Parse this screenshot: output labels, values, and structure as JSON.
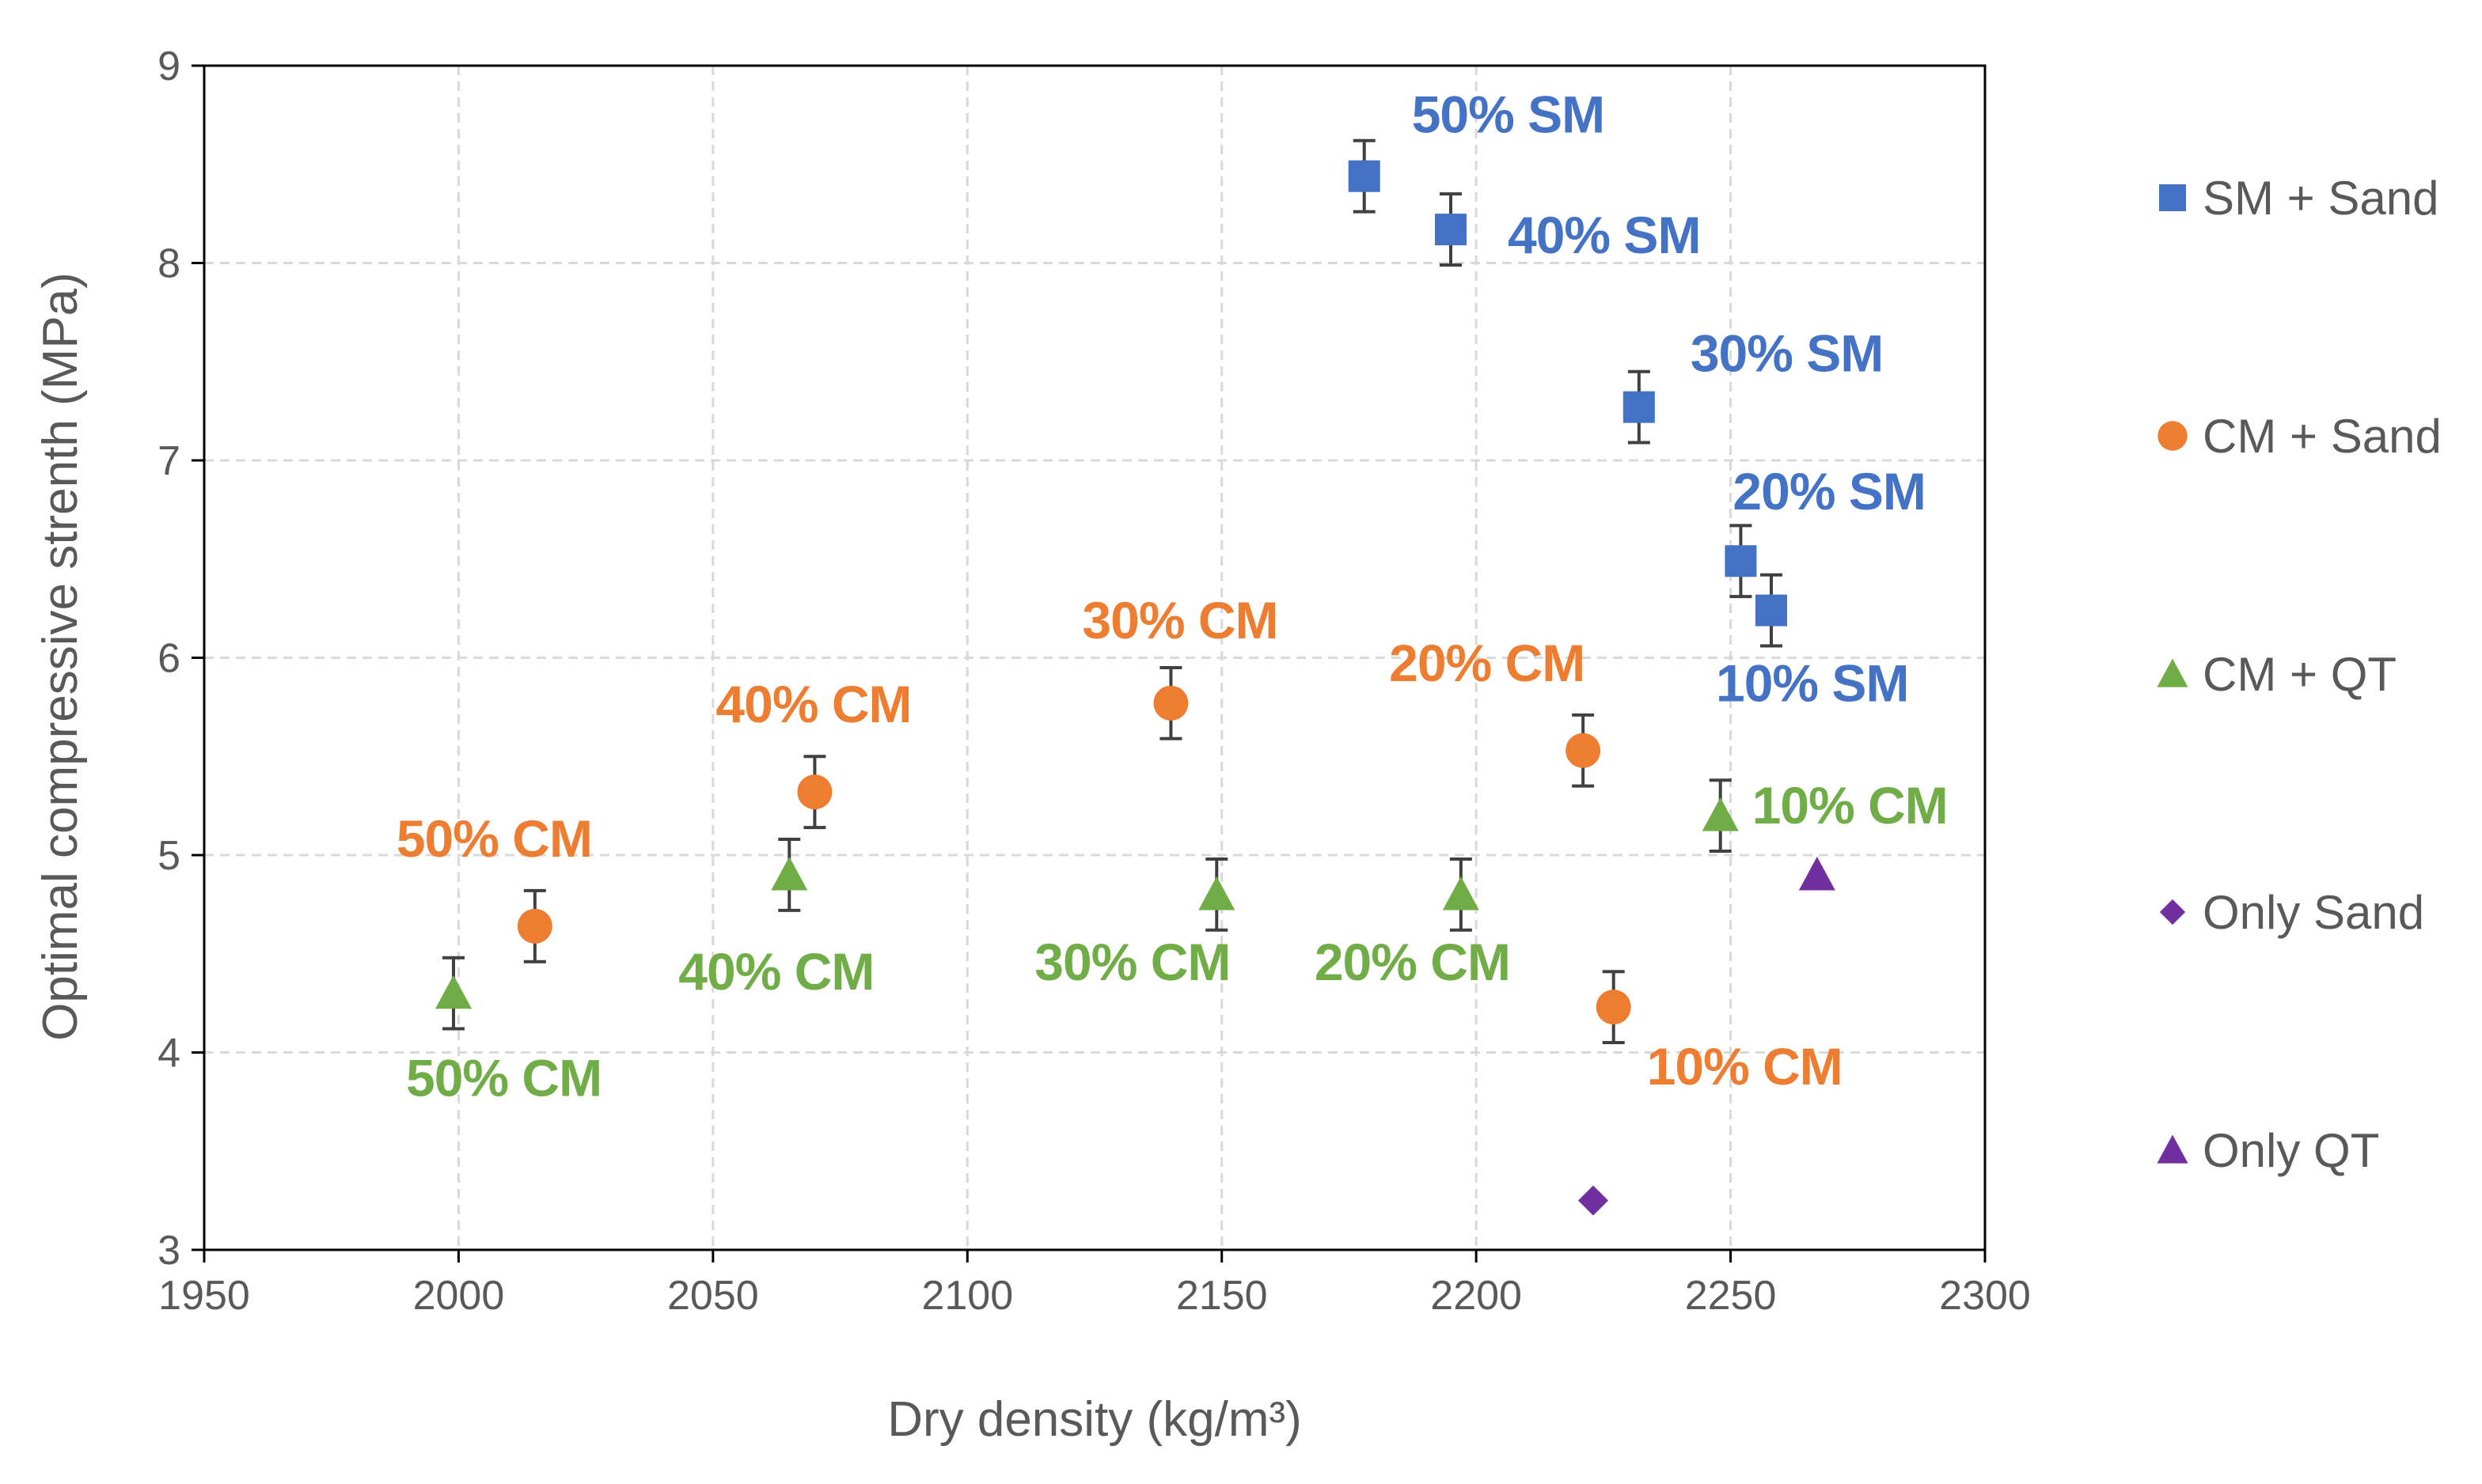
{
  "chart_data": {
    "type": "scatter",
    "title": "",
    "xlabel": "Dry density (kg/m³)",
    "ylabel": "Optimal compressive strenth (MPa)",
    "xlim": [
      1950,
      2300
    ],
    "ylim": [
      3,
      9
    ],
    "xticks": [
      1950,
      2000,
      2050,
      2100,
      2150,
      2200,
      2250,
      2300
    ],
    "yticks": [
      3,
      4,
      5,
      6,
      7,
      8,
      9
    ],
    "grid": true,
    "legend_position": "right",
    "series": [
      {
        "name": "SM + Sand",
        "marker": "square",
        "color": "#4472C4",
        "points": [
          {
            "x": 2178,
            "y": 8.44,
            "err": 0.18,
            "label": "50% SM"
          },
          {
            "x": 2195,
            "y": 8.17,
            "err": 0.18,
            "label": "40% SM"
          },
          {
            "x": 2232,
            "y": 7.27,
            "err": 0.18,
            "label": "30% SM"
          },
          {
            "x": 2252,
            "y": 6.49,
            "err": 0.18,
            "label": "20% SM"
          },
          {
            "x": 2258,
            "y": 6.24,
            "err": 0.18,
            "label": "10% SM"
          }
        ]
      },
      {
        "name": "CM + Sand",
        "marker": "circle",
        "color": "#ED7D31",
        "points": [
          {
            "x": 2015,
            "y": 4.64,
            "err": 0.18,
            "label": "50% CM"
          },
          {
            "x": 2070,
            "y": 5.32,
            "err": 0.18,
            "label": "40% CM"
          },
          {
            "x": 2140,
            "y": 5.77,
            "err": 0.18,
            "label": "30% CM"
          },
          {
            "x": 2221,
            "y": 5.53,
            "err": 0.18,
            "label": "20% CM"
          },
          {
            "x": 2227,
            "y": 4.23,
            "err": 0.18,
            "label": "10% CM"
          }
        ]
      },
      {
        "name": "CM + QT",
        "marker": "triangle",
        "color": "#70AD47",
        "points": [
          {
            "x": 1999,
            "y": 4.3,
            "err": 0.18,
            "label": "50% CM"
          },
          {
            "x": 2065,
            "y": 4.9,
            "err": 0.18,
            "label": "40% CM"
          },
          {
            "x": 2149,
            "y": 4.8,
            "err": 0.18,
            "label": "30% CM"
          },
          {
            "x": 2197,
            "y": 4.8,
            "err": 0.18,
            "label": "20% CM"
          },
          {
            "x": 2248,
            "y": 5.2,
            "err": 0.18,
            "label": "10% CM"
          }
        ]
      },
      {
        "name": "Only Sand",
        "marker": "diamond",
        "color": "#7030A0",
        "points": [
          {
            "x": 2223,
            "y": 3.25
          }
        ]
      },
      {
        "name": "Only QT",
        "marker": "triangle",
        "color": "#7030A0",
        "points": [
          {
            "x": 2267,
            "y": 4.9
          }
        ]
      }
    ]
  }
}
